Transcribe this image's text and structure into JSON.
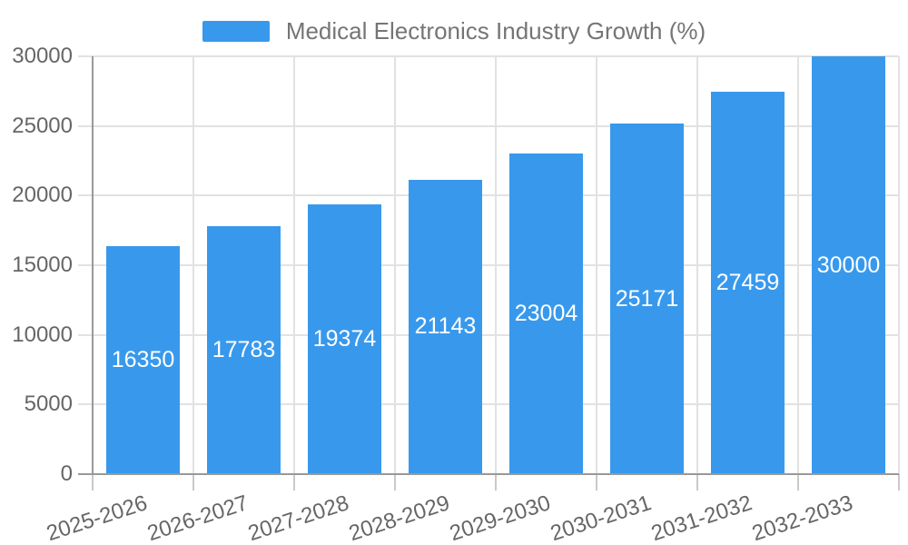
{
  "chart_data": {
    "type": "bar",
    "title": "Medical Electronics Industry Growth (%)",
    "series_name": "Medical Electronics Industry Growth (%)",
    "categories": [
      "2025-2026",
      "2026-2027",
      "2027-2028",
      "2028-2029",
      "2029-2030",
      "2030-2031",
      "2031-2032",
      "2032-2033"
    ],
    "values": [
      16350,
      17783,
      19374,
      21143,
      23004,
      25171,
      27459,
      30000
    ],
    "value_labels": [
      "16350",
      "17783",
      "19374",
      "21143",
      "23004",
      "25171",
      "27459",
      "30000"
    ],
    "y_ticks": [
      0,
      5000,
      10000,
      15000,
      20000,
      25000,
      30000
    ],
    "y_tick_labels": [
      "0",
      "5000",
      "10000",
      "15000",
      "20000",
      "25000",
      "30000"
    ],
    "xlabel": "",
    "ylabel": "",
    "ylim": [
      0,
      30000
    ],
    "grid": true,
    "legend_position": "top-center",
    "colors": {
      "bar": "#3899EC",
      "bar_label": "#FFFFFF",
      "axis_text": "#666666",
      "legend_text": "#757575",
      "grid_line": "#E2E2E2",
      "axis_line": "#999999",
      "tick_line": "#C9C9C9",
      "background": "#FFFFFF"
    }
  }
}
